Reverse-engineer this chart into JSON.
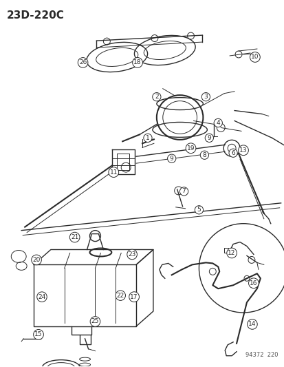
{
  "title": "23D-220C",
  "footer": "94372  220",
  "bg_color": "#ffffff",
  "lc": "#2a2a2a",
  "title_fontsize": 11,
  "label_fontsize": 6.5,
  "fig_width": 4.14,
  "fig_height": 5.33,
  "dpi": 100
}
